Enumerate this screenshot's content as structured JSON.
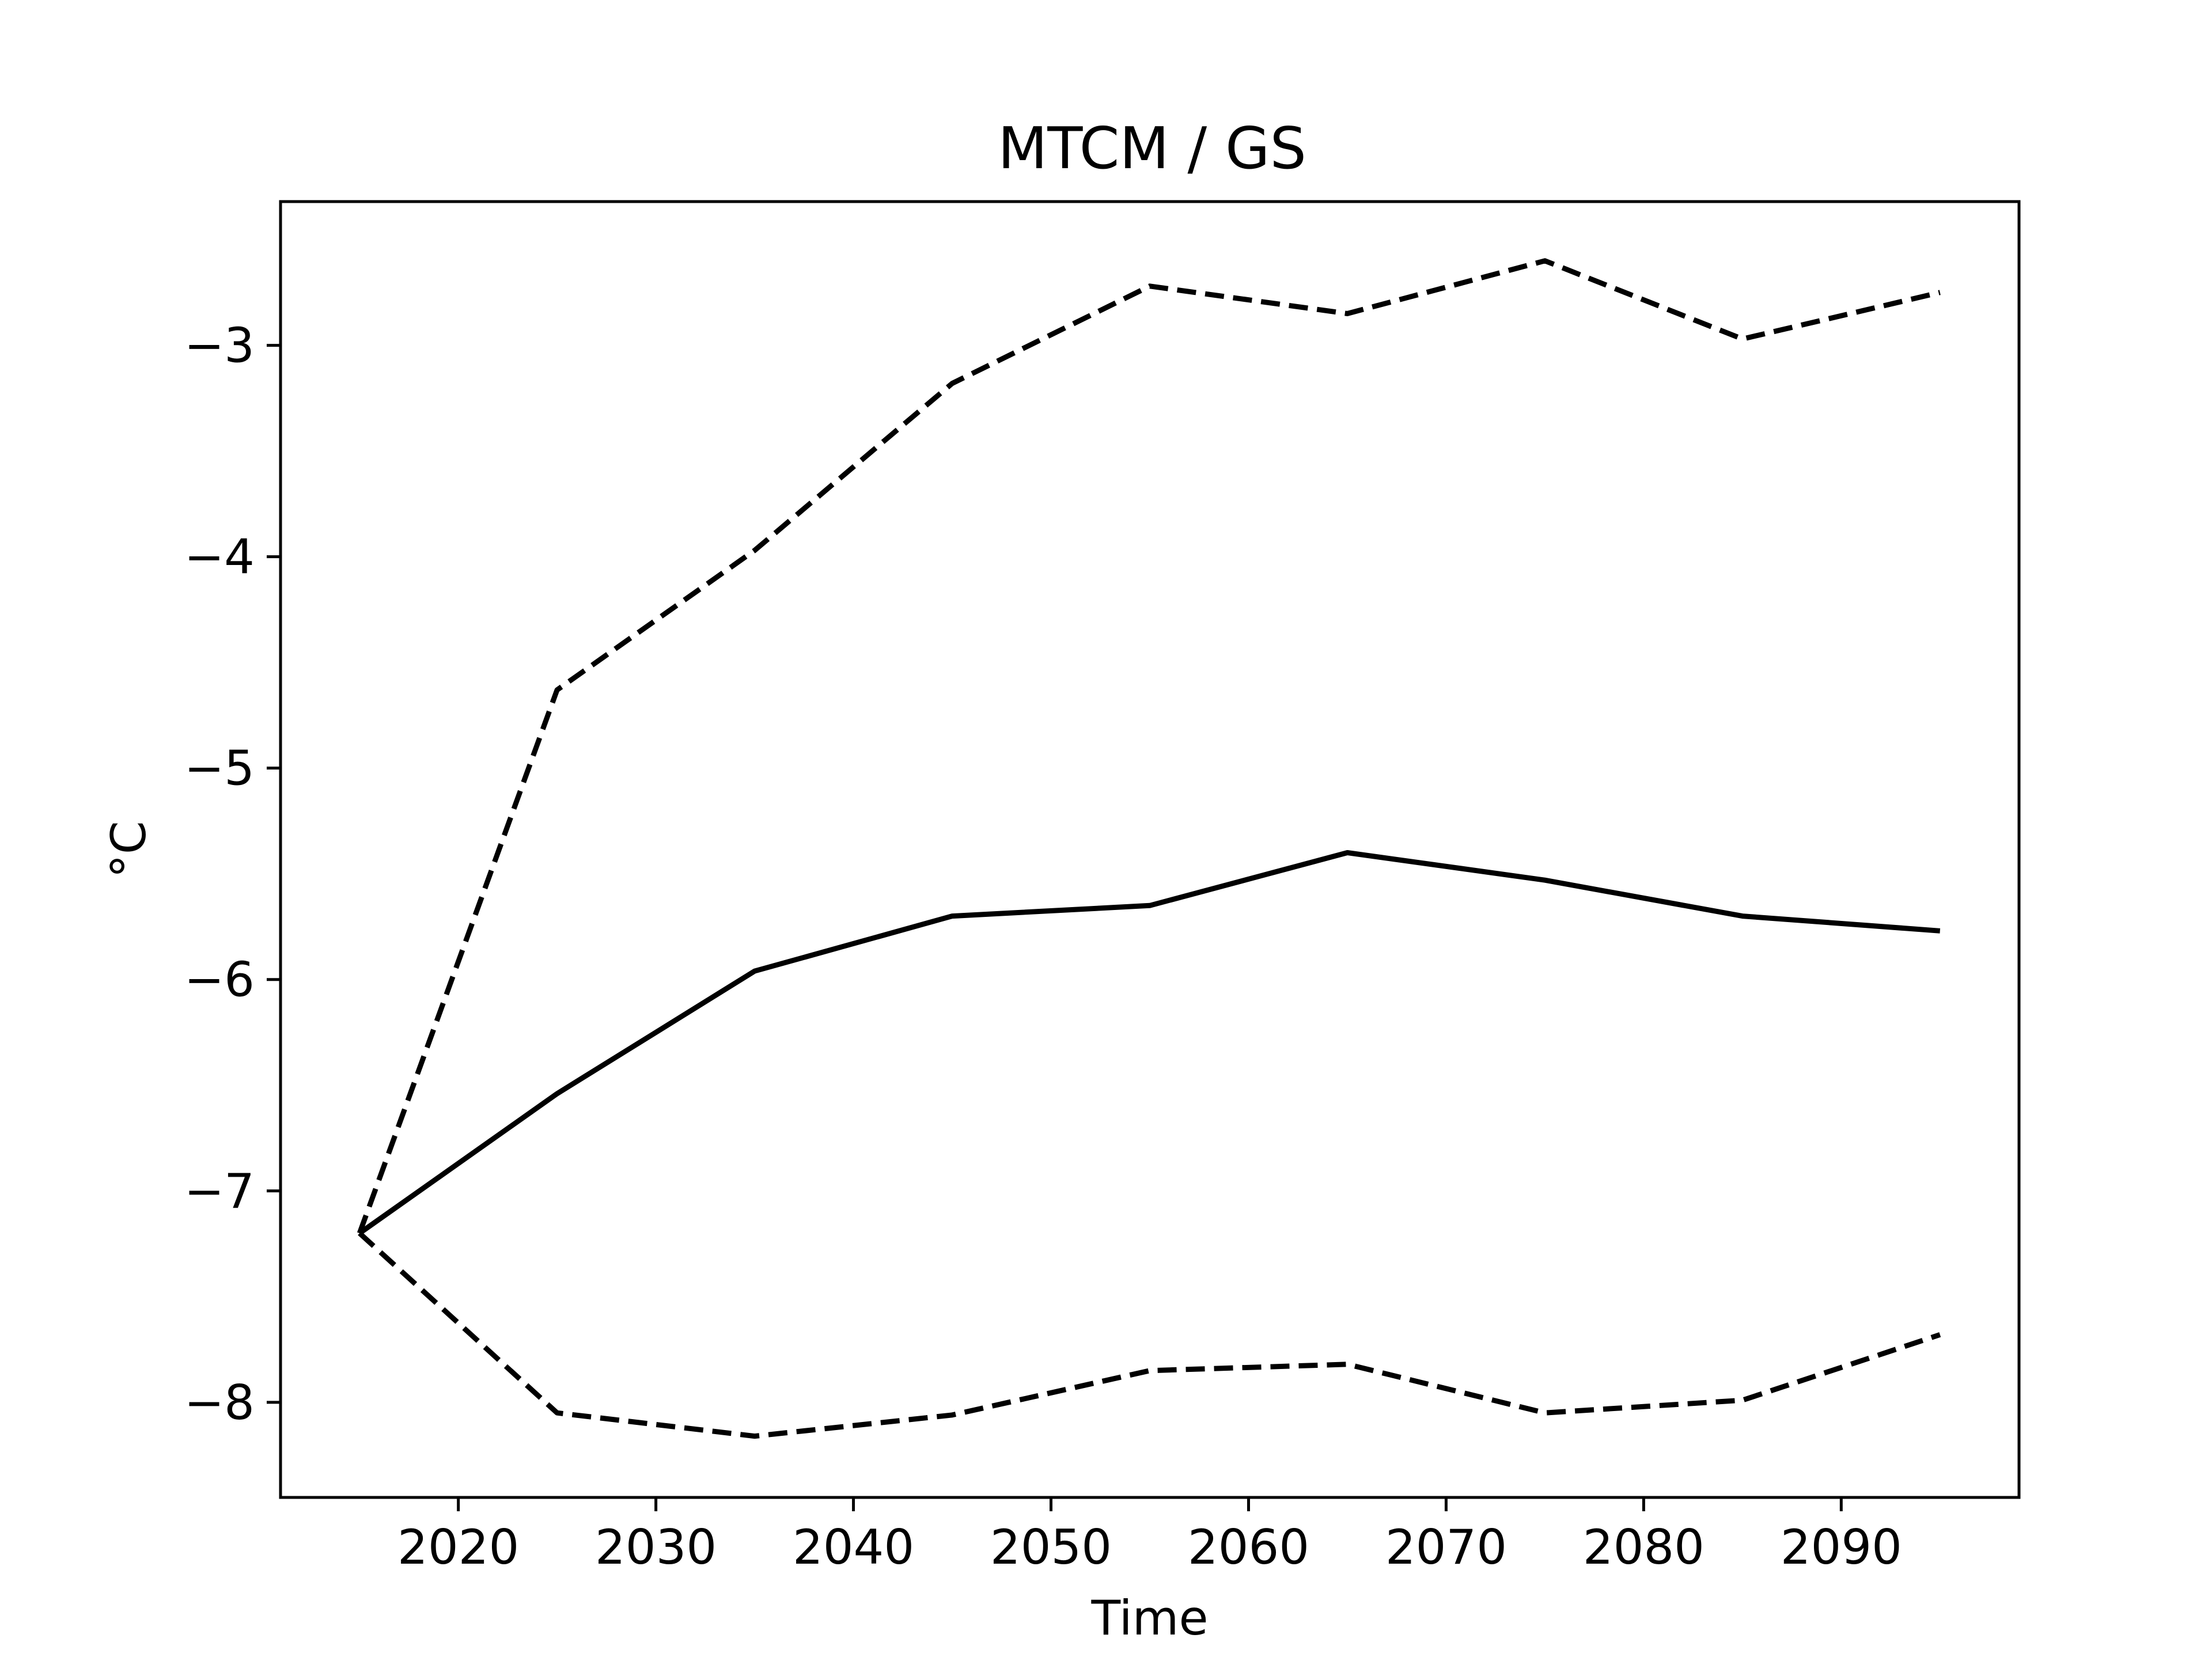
{
  "chart_data": {
    "type": "line",
    "title": "MTCM / GS",
    "xlabel": "Time",
    "ylabel": "°C",
    "xlim": [
      2011,
      2099
    ],
    "ylim": [
      -8.45,
      -2.32
    ],
    "xticks": [
      2020,
      2030,
      2040,
      2050,
      2060,
      2070,
      2080,
      2090
    ],
    "xtick_labels": [
      "2020",
      "2030",
      "2040",
      "2050",
      "2060",
      "2070",
      "2080",
      "2090"
    ],
    "yticks": [
      -3,
      -4,
      -5,
      -6,
      -7,
      -8
    ],
    "ytick_labels": [
      "−3",
      "−4",
      "−5",
      "−6",
      "−7",
      "−8"
    ],
    "grid": false,
    "legend": "none",
    "x": [
      2015,
      2025,
      2035,
      2045,
      2055,
      2065,
      2075,
      2085,
      2095
    ],
    "series": [
      {
        "style": "solid",
        "color": "#000000",
        "values": [
          -7.2,
          -6.54,
          -5.96,
          -5.7,
          -5.65,
          -5.4,
          -5.53,
          -5.7,
          -5.77
        ]
      },
      {
        "style": "dashed",
        "color": "#000000",
        "values": [
          -7.2,
          -4.63,
          -3.97,
          -3.18,
          -2.72,
          -2.85,
          -2.6,
          -2.97,
          -2.75
        ]
      },
      {
        "style": "dashed",
        "color": "#000000",
        "values": [
          -7.2,
          -8.05,
          -8.16,
          -8.06,
          -7.85,
          -7.82,
          -8.05,
          -7.99,
          -7.68
        ]
      }
    ]
  }
}
